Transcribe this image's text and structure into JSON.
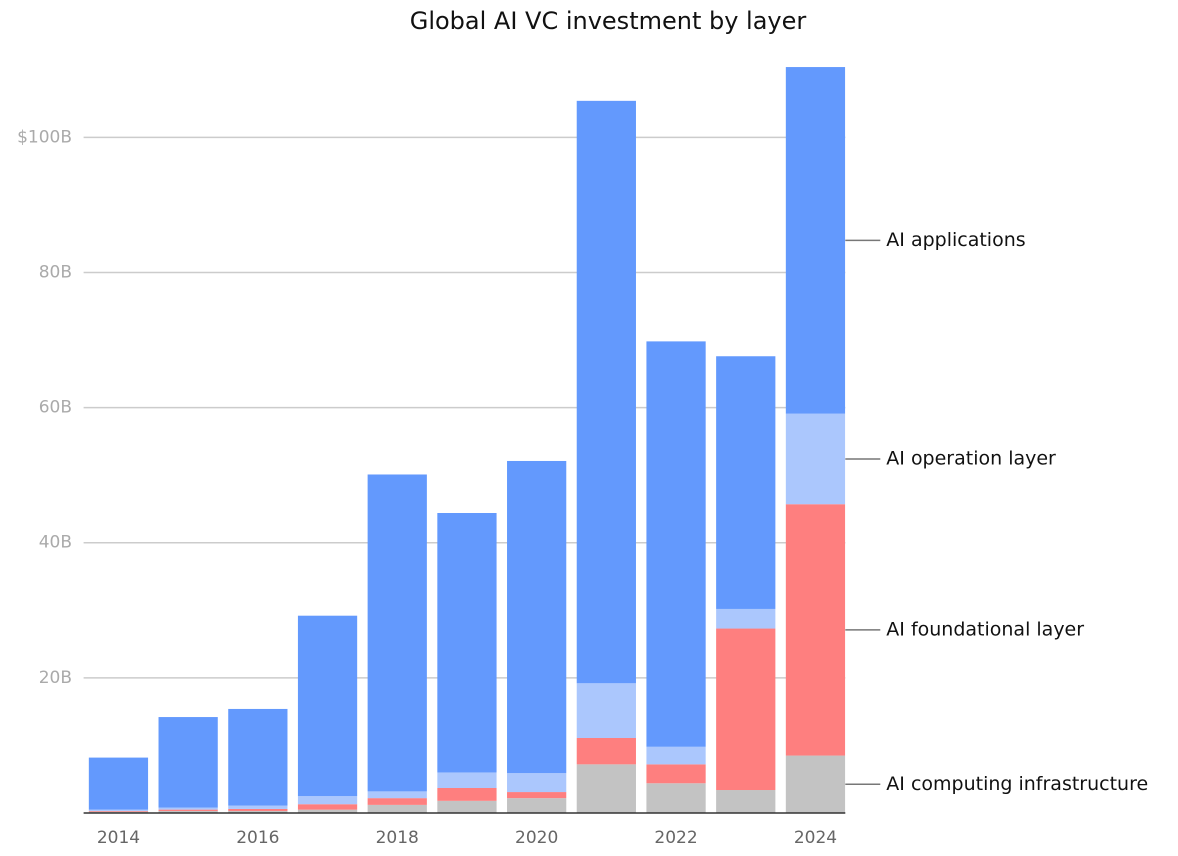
{
  "chart_data": {
    "type": "stacked_bar",
    "title": "Global AI VC investment by layer",
    "categories": [
      "2014",
      null,
      "2016",
      null,
      "2018",
      null,
      "2020",
      null,
      "2022",
      null,
      "2024"
    ],
    "series": [
      {
        "name": "AI computing infrastructure",
        "color": "#c3c3c3",
        "values": [
          0.2,
          0.3,
          0.3,
          0.5,
          1.2,
          1.8,
          2.2,
          7.2,
          4.4,
          3.4,
          8.5
        ]
      },
      {
        "name": "AI foundational layer",
        "color": "#fe7f7f",
        "values": [
          0.1,
          0.2,
          0.3,
          0.8,
          1.0,
          1.9,
          0.9,
          3.9,
          2.8,
          23.9,
          37.2
        ]
      },
      {
        "name": "AI operation layer",
        "color": "#abc7fd",
        "values": [
          0.2,
          0.3,
          0.5,
          1.2,
          1.0,
          2.3,
          2.8,
          8.1,
          2.6,
          2.9,
          13.4
        ]
      },
      {
        "name": "AI applications",
        "color": "#6399fd",
        "values": [
          7.7,
          13.4,
          14.3,
          26.7,
          46.9,
          38.4,
          46.2,
          86.2,
          60.0,
          37.4,
          51.3
        ]
      }
    ],
    "ylim": [
      0,
      111
    ],
    "yticks": [
      {
        "value": 20,
        "label": "20B"
      },
      {
        "value": 40,
        "label": "40B"
      },
      {
        "value": 60,
        "label": "60B"
      },
      {
        "value": 80,
        "label": "80B"
      },
      {
        "value": 100,
        "label": "$100B"
      }
    ],
    "grid": true
  }
}
